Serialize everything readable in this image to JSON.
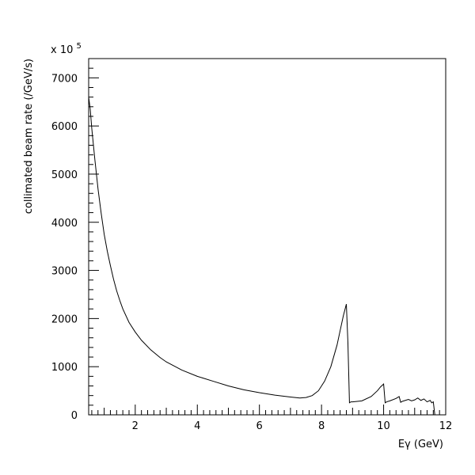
{
  "chart_data": {
    "type": "line",
    "title": "",
    "xlabel": "Eγ (GeV)",
    "ylabel": "collimated beam rate (/GeV/s)",
    "y_multiplier": "x 10",
    "y_multiplier_exponent": "5",
    "xlim": [
      0.5,
      12
    ],
    "ylim": [
      0,
      7400
    ],
    "xticks": [
      2,
      4,
      6,
      8,
      10,
      12
    ],
    "yticks": [
      0,
      1000,
      2000,
      3000,
      4000,
      5000,
      6000,
      7000
    ],
    "grid": false,
    "legend": "none",
    "line_color": "#000000",
    "series": [
      {
        "x": [
          0.5,
          0.55,
          0.6,
          0.7,
          0.8,
          0.9,
          1.0,
          1.1,
          1.2,
          1.3,
          1.4,
          1.5,
          1.6,
          1.8,
          2.0,
          2.2,
          2.5,
          2.8,
          3.0,
          3.5,
          4.0,
          4.5,
          5.0,
          5.5,
          6.0,
          6.5,
          7.0,
          7.3,
          7.5,
          7.7,
          7.9,
          8.1,
          8.3,
          8.5,
          8.6,
          8.7,
          8.8,
          8.85,
          8.9,
          8.95,
          9.0,
          9.3,
          9.6,
          9.8,
          9.9,
          10.0,
          10.05,
          10.1,
          10.2,
          10.4,
          10.5,
          10.55,
          10.6,
          10.7,
          10.8,
          10.9,
          11.0,
          11.1,
          11.2,
          11.3,
          11.4,
          11.5,
          11.55,
          11.6,
          11.65
        ],
        "y": [
          6600,
          6350,
          5950,
          5300,
          4700,
          4200,
          3750,
          3400,
          3100,
          2820,
          2580,
          2380,
          2200,
          1920,
          1720,
          1550,
          1350,
          1190,
          1100,
          930,
          800,
          700,
          600,
          520,
          460,
          410,
          370,
          350,
          360,
          400,
          500,
          700,
          1000,
          1450,
          1750,
          2050,
          2300,
          1500,
          250,
          270,
          270,
          290,
          380,
          500,
          580,
          640,
          250,
          270,
          290,
          340,
          380,
          260,
          280,
          300,
          320,
          290,
          310,
          350,
          300,
          330,
          270,
          300,
          250,
          270,
          0
        ]
      }
    ]
  }
}
